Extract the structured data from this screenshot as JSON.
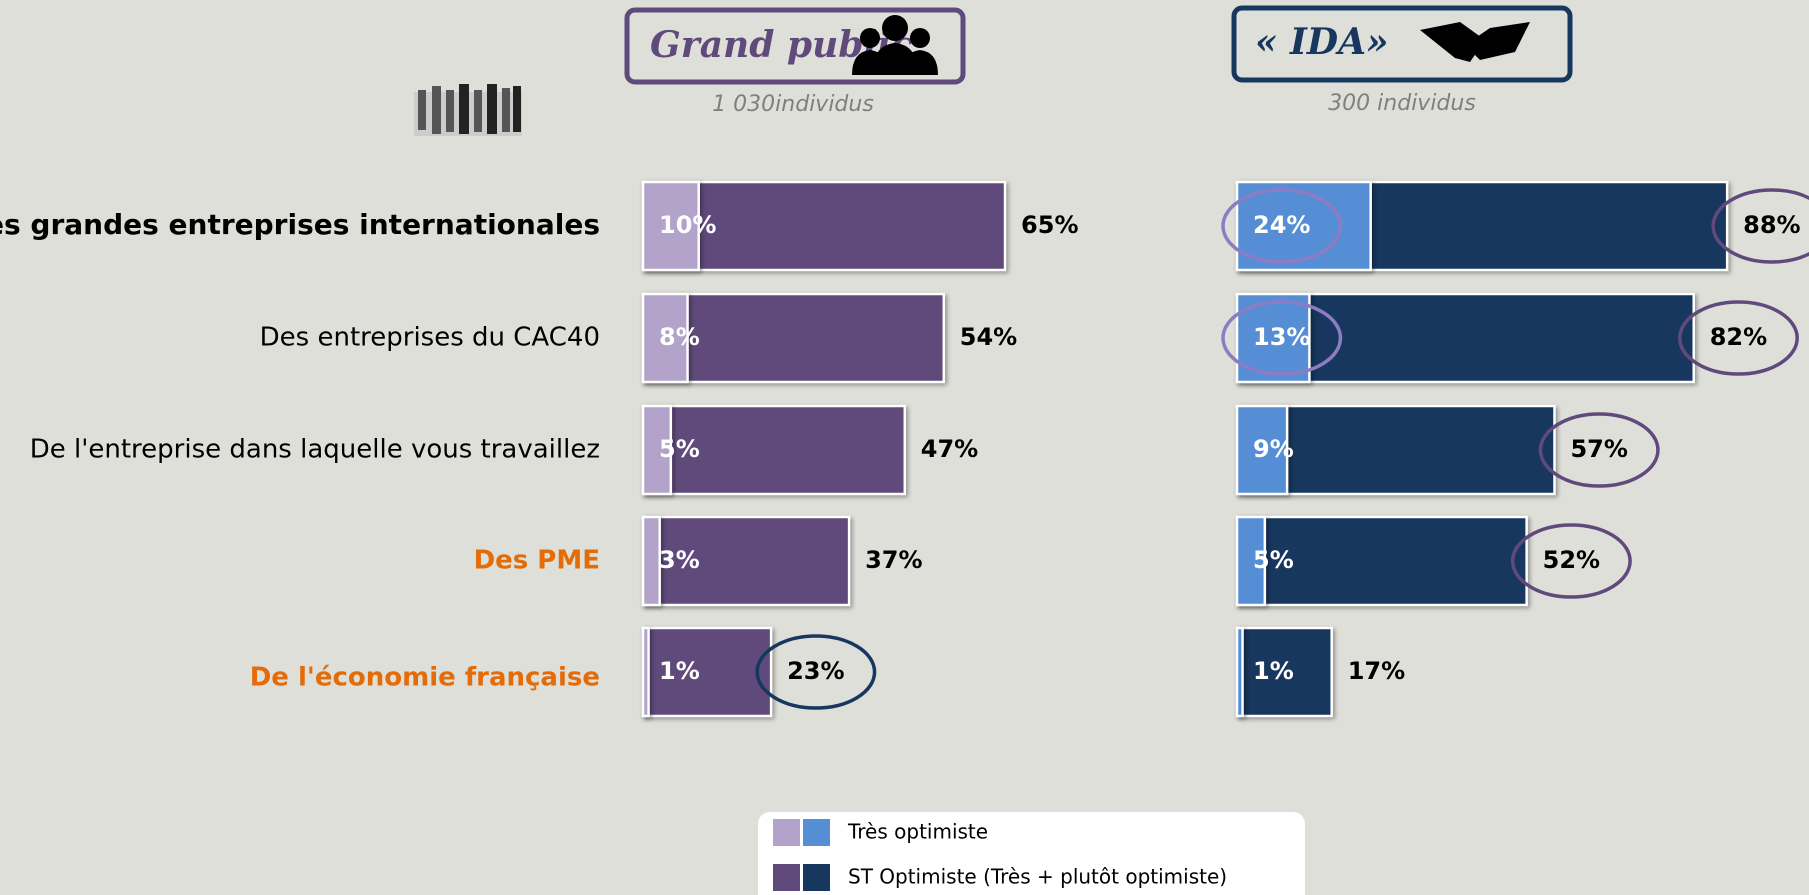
{
  "chart_data": {
    "type": "bar",
    "orientation": "horizontal",
    "categories": [
      "Des grandes entreprises internationales",
      "Des entreprises du CAC40",
      "De l'entreprise dans laquelle vous travaillez",
      "Des PME",
      "De l'économie française"
    ],
    "panels": [
      {
        "title": "Grand public",
        "subtitle": "1 030individus"
      },
      {
        "title": "« IDA»",
        "subtitle": "300 individus"
      }
    ],
    "series": [
      {
        "name": "Très optimiste",
        "colors": [
          "#b3a2c9",
          "#558ed5"
        ],
        "values": [
          [
            10,
            8,
            5,
            3,
            1
          ],
          [
            24,
            13,
            9,
            5,
            1
          ]
        ],
        "value_labels": [
          [
            "10%",
            "8%",
            "5%",
            "3%",
            "1%"
          ],
          [
            "24%",
            "13%",
            "9%",
            "5%",
            "1%"
          ]
        ]
      },
      {
        "name": "ST Optimiste (Très + plutôt optimiste)",
        "colors": [
          "#604a7b",
          "#17375e"
        ],
        "values": [
          [
            65,
            54,
            47,
            37,
            23
          ],
          [
            88,
            82,
            57,
            52,
            17
          ]
        ],
        "value_labels": [
          [
            "65%",
            "54%",
            "47%",
            "37%",
            "23%"
          ],
          [
            "88%",
            "82%",
            "57%",
            "52%",
            "17%"
          ]
        ]
      }
    ],
    "xlim": [
      0,
      100
    ]
  }
}
